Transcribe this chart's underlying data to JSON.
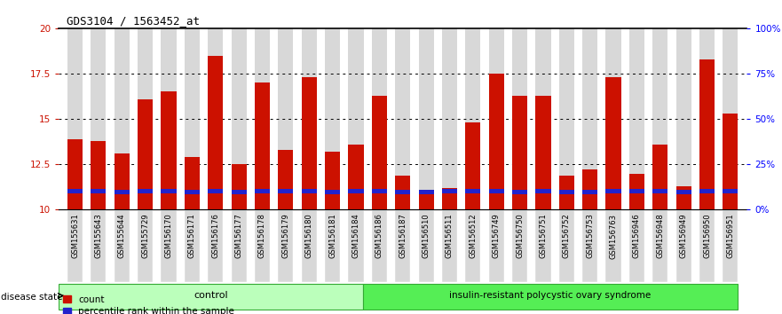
{
  "title": "GDS3104 / 1563452_at",
  "samples": [
    "GSM155631",
    "GSM155643",
    "GSM155644",
    "GSM155729",
    "GSM156170",
    "GSM156171",
    "GSM156176",
    "GSM156177",
    "GSM156178",
    "GSM156179",
    "GSM156180",
    "GSM156181",
    "GSM156184",
    "GSM156186",
    "GSM156187",
    "GSM156510",
    "GSM156511",
    "GSM156512",
    "GSM156749",
    "GSM156750",
    "GSM156751",
    "GSM156752",
    "GSM156753",
    "GSM156763",
    "GSM156946",
    "GSM156948",
    "GSM156949",
    "GSM156950",
    "GSM156951"
  ],
  "red_values": [
    13.9,
    13.8,
    13.1,
    16.1,
    16.5,
    12.9,
    18.5,
    12.5,
    17.0,
    13.3,
    17.3,
    13.2,
    13.6,
    16.3,
    11.9,
    11.1,
    11.2,
    14.8,
    17.5,
    16.3,
    16.3,
    11.9,
    12.2,
    17.3,
    12.0,
    13.6,
    11.3,
    18.3,
    15.3
  ],
  "blue_bottoms": [
    10.9,
    10.9,
    10.85,
    10.9,
    10.9,
    10.85,
    10.9,
    10.85,
    10.9,
    10.9,
    10.9,
    10.85,
    10.9,
    10.9,
    10.85,
    10.85,
    10.9,
    10.9,
    10.9,
    10.85,
    10.9,
    10.85,
    10.85,
    10.9,
    10.9,
    10.9,
    10.85,
    10.9,
    10.9
  ],
  "blue_heights": [
    0.25,
    0.25,
    0.25,
    0.25,
    0.25,
    0.25,
    0.25,
    0.25,
    0.25,
    0.25,
    0.25,
    0.25,
    0.25,
    0.25,
    0.25,
    0.25,
    0.25,
    0.25,
    0.25,
    0.25,
    0.25,
    0.25,
    0.25,
    0.25,
    0.25,
    0.25,
    0.25,
    0.25,
    0.25
  ],
  "control_count": 13,
  "disease_count": 16,
  "ylim": [
    10,
    20
  ],
  "yticks": [
    10,
    12.5,
    15,
    17.5,
    20
  ],
  "ytick_labels_left": [
    "10",
    "12.5",
    "15",
    "17.5",
    "20"
  ],
  "ytick_labels_right": [
    "0%",
    "25%",
    "50%",
    "75%",
    "100%"
  ],
  "bar_color_red": "#CC1100",
  "bar_color_blue": "#2222CC",
  "bg_color_plot": "#D8D8D8",
  "control_label": "control",
  "disease_label": "insulin-resistant polycystic ovary syndrome",
  "control_bg": "#BBFFBB",
  "disease_bg": "#55EE55",
  "legend_count": "count",
  "legend_percentile": "percentile rank within the sample"
}
